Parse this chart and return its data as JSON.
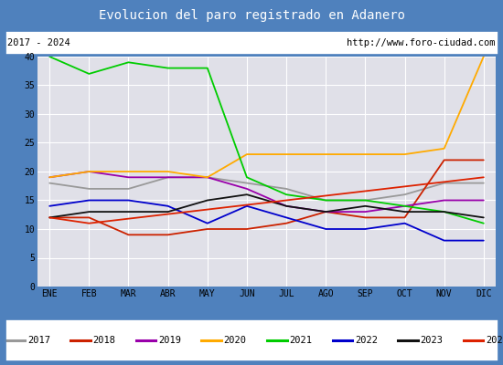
{
  "title": "Evolucion del paro registrado en Adanero",
  "subtitle_left": "2017 - 2024",
  "subtitle_right": "http://www.foro-ciudad.com",
  "months": [
    "ENE",
    "FEB",
    "MAR",
    "ABR",
    "MAY",
    "JUN",
    "JUL",
    "AGO",
    "SEP",
    "OCT",
    "NOV",
    "DIC"
  ],
  "series": {
    "2017": {
      "color": "#999999",
      "data": [
        18,
        17,
        17,
        19,
        19,
        18,
        17,
        15,
        15,
        16,
        18,
        18
      ]
    },
    "2018": {
      "color": "#cc2200",
      "data": [
        12,
        12,
        9,
        9,
        10,
        10,
        11,
        13,
        12,
        12,
        22,
        22
      ]
    },
    "2019": {
      "color": "#9900aa",
      "data": [
        19,
        20,
        19,
        19,
        19,
        17,
        14,
        13,
        13,
        14,
        15,
        15
      ]
    },
    "2020": {
      "color": "#ffaa00",
      "data": [
        19,
        20,
        20,
        20,
        19,
        23,
        23,
        23,
        23,
        23,
        24,
        40
      ]
    },
    "2021": {
      "color": "#00cc00",
      "data": [
        40,
        37,
        39,
        38,
        38,
        19,
        16,
        15,
        15,
        14,
        13,
        11
      ]
    },
    "2022": {
      "color": "#0000cc",
      "data": [
        14,
        15,
        15,
        14,
        11,
        14,
        12,
        10,
        10,
        11,
        8,
        8
      ]
    },
    "2023": {
      "color": "#111111",
      "data": [
        12,
        13,
        13,
        13,
        15,
        16,
        14,
        13,
        14,
        13,
        13,
        12
      ]
    },
    "2024": {
      "color": "#dd2200",
      "data": [
        12,
        11,
        null,
        null,
        null,
        null,
        null,
        null,
        null,
        null,
        null,
        19
      ]
    }
  },
  "ylim": [
    0,
    40
  ],
  "yticks": [
    0,
    5,
    10,
    15,
    20,
    25,
    30,
    35,
    40
  ],
  "title_bg": "#4f81bd",
  "title_color": "#ffffff",
  "plot_bg": "#e0e0e8",
  "grid_color": "#ffffff",
  "border_color": "#4f81bd",
  "fig_bg": "#4f81bd",
  "title_fontsize": 10,
  "subtitle_fontsize": 7.5,
  "tick_fontsize": 7,
  "legend_fontsize": 7.5
}
